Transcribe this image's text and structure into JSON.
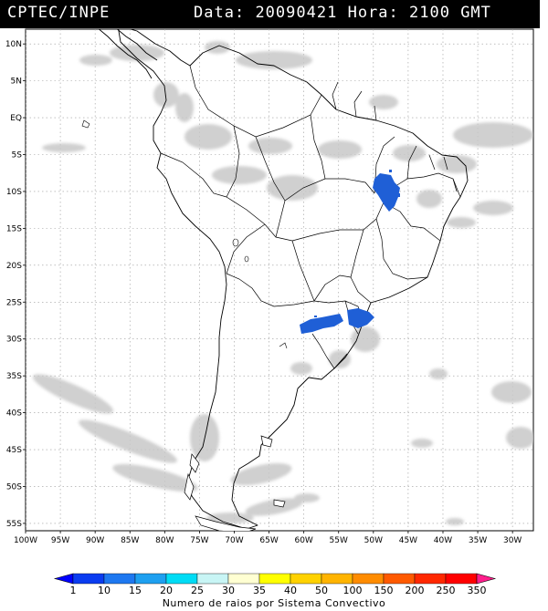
{
  "header": {
    "source": "CPTEC/INPE",
    "date_label": "Data:",
    "date_value": "20090421",
    "time_label": "Hora:",
    "time_value": "2100 GMT"
  },
  "map": {
    "lat_ticks": [
      "10N",
      "5N",
      "EQ",
      "5S",
      "10S",
      "15S",
      "20S",
      "25S",
      "30S",
      "35S",
      "40S",
      "45S",
      "50S",
      "55S"
    ],
    "lon_ticks": [
      "100W",
      "95W",
      "90W",
      "85W",
      "80W",
      "75W",
      "70W",
      "65W",
      "60W",
      "55W",
      "50W",
      "45W",
      "40W",
      "35W",
      "30W"
    ],
    "lat_range": [
      -56,
      12
    ],
    "lon_range": [
      -100,
      -27
    ],
    "gridlines": true,
    "colors": {
      "cloud": "#c8c8c8",
      "lightning": "#1f5fd6",
      "coast": "#000000",
      "grid": "#9a9a9a"
    }
  },
  "colorbar": {
    "labels": [
      "1",
      "10",
      "15",
      "20",
      "25",
      "30",
      "35",
      "40",
      "50",
      "100",
      "150",
      "200",
      "250",
      "350"
    ],
    "colors": [
      "#0000ff",
      "#0a3cf0",
      "#1e78f0",
      "#1ea0f0",
      "#00dcf5",
      "#c8f5f5",
      "#ffffd2",
      "#ffff00",
      "#ffd200",
      "#ffb400",
      "#ff8c00",
      "#ff5a00",
      "#ff2800",
      "#ff0000",
      "#ff1e8c"
    ],
    "title": "Numero de raios por Sistema Convectivo"
  }
}
